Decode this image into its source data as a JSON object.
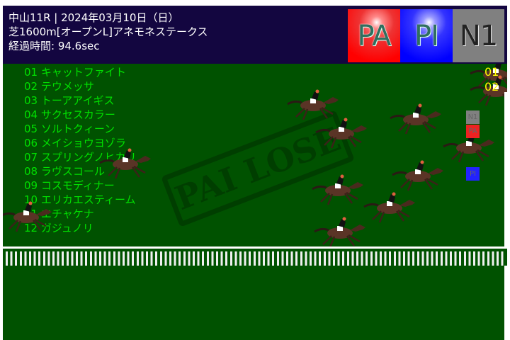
{
  "header": {
    "line1": "中山11R | 2024年03月10日（日）",
    "line2": "芝1600m[オープンL]アネモネステークス",
    "line3": "経過時間: 94.6sec",
    "logos": [
      "PA",
      "PI",
      "N1"
    ]
  },
  "horses": [
    "01 キャットファイト",
    "02 テウメッサ",
    "03 トーアアイギス",
    "04 サクセスカラー",
    "05 ソルトクィーン",
    "06 メイショウヨゾラ",
    "07 スプリングノヒカリ",
    "08 ラヴスコール",
    "09 コスモディナー",
    "10 エリカエスティーム",
    "11 エチャケナ",
    "12 ガジュノリ"
  ],
  "stamp": "PAI LOSE",
  "leaders": [
    "01",
    "02"
  ],
  "badges": [
    "N1",
    "PA",
    "PI"
  ],
  "colors": {
    "field": "#005200",
    "header": "#130640",
    "list_text": "#00e000",
    "leader_num": "#ffff00"
  }
}
